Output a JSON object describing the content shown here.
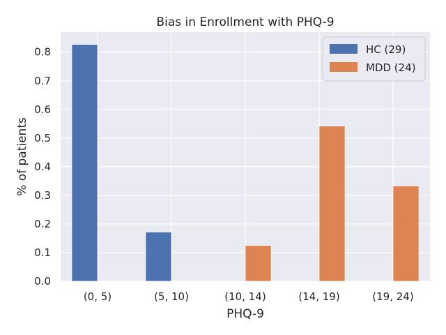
{
  "chart_data": {
    "type": "bar",
    "title": "Bias in Enrollment with PHQ-9",
    "xlabel": "PHQ-9",
    "ylabel": "% of patients",
    "categories": [
      "(0, 5)",
      "(5, 10)",
      "(10, 14)",
      "(14, 19)",
      "(19, 24)"
    ],
    "series": [
      {
        "name": "HC (29)",
        "values": [
          0.827,
          0.172,
          0.0,
          0.0,
          0.0
        ],
        "color": "#4c72b0"
      },
      {
        "name": "MDD (24)",
        "values": [
          0.0,
          0.0,
          0.125,
          0.542,
          0.333
        ],
        "color": "#dd8452"
      }
    ],
    "ylim": [
      0,
      0.87
    ],
    "yticks": [
      "0.0",
      "0.1",
      "0.2",
      "0.3",
      "0.4",
      "0.5",
      "0.6",
      "0.7",
      "0.8"
    ],
    "grid": true,
    "legend_position": "top-right",
    "plot_background": "#eaeaf2",
    "grid_color": "#ffffff"
  }
}
